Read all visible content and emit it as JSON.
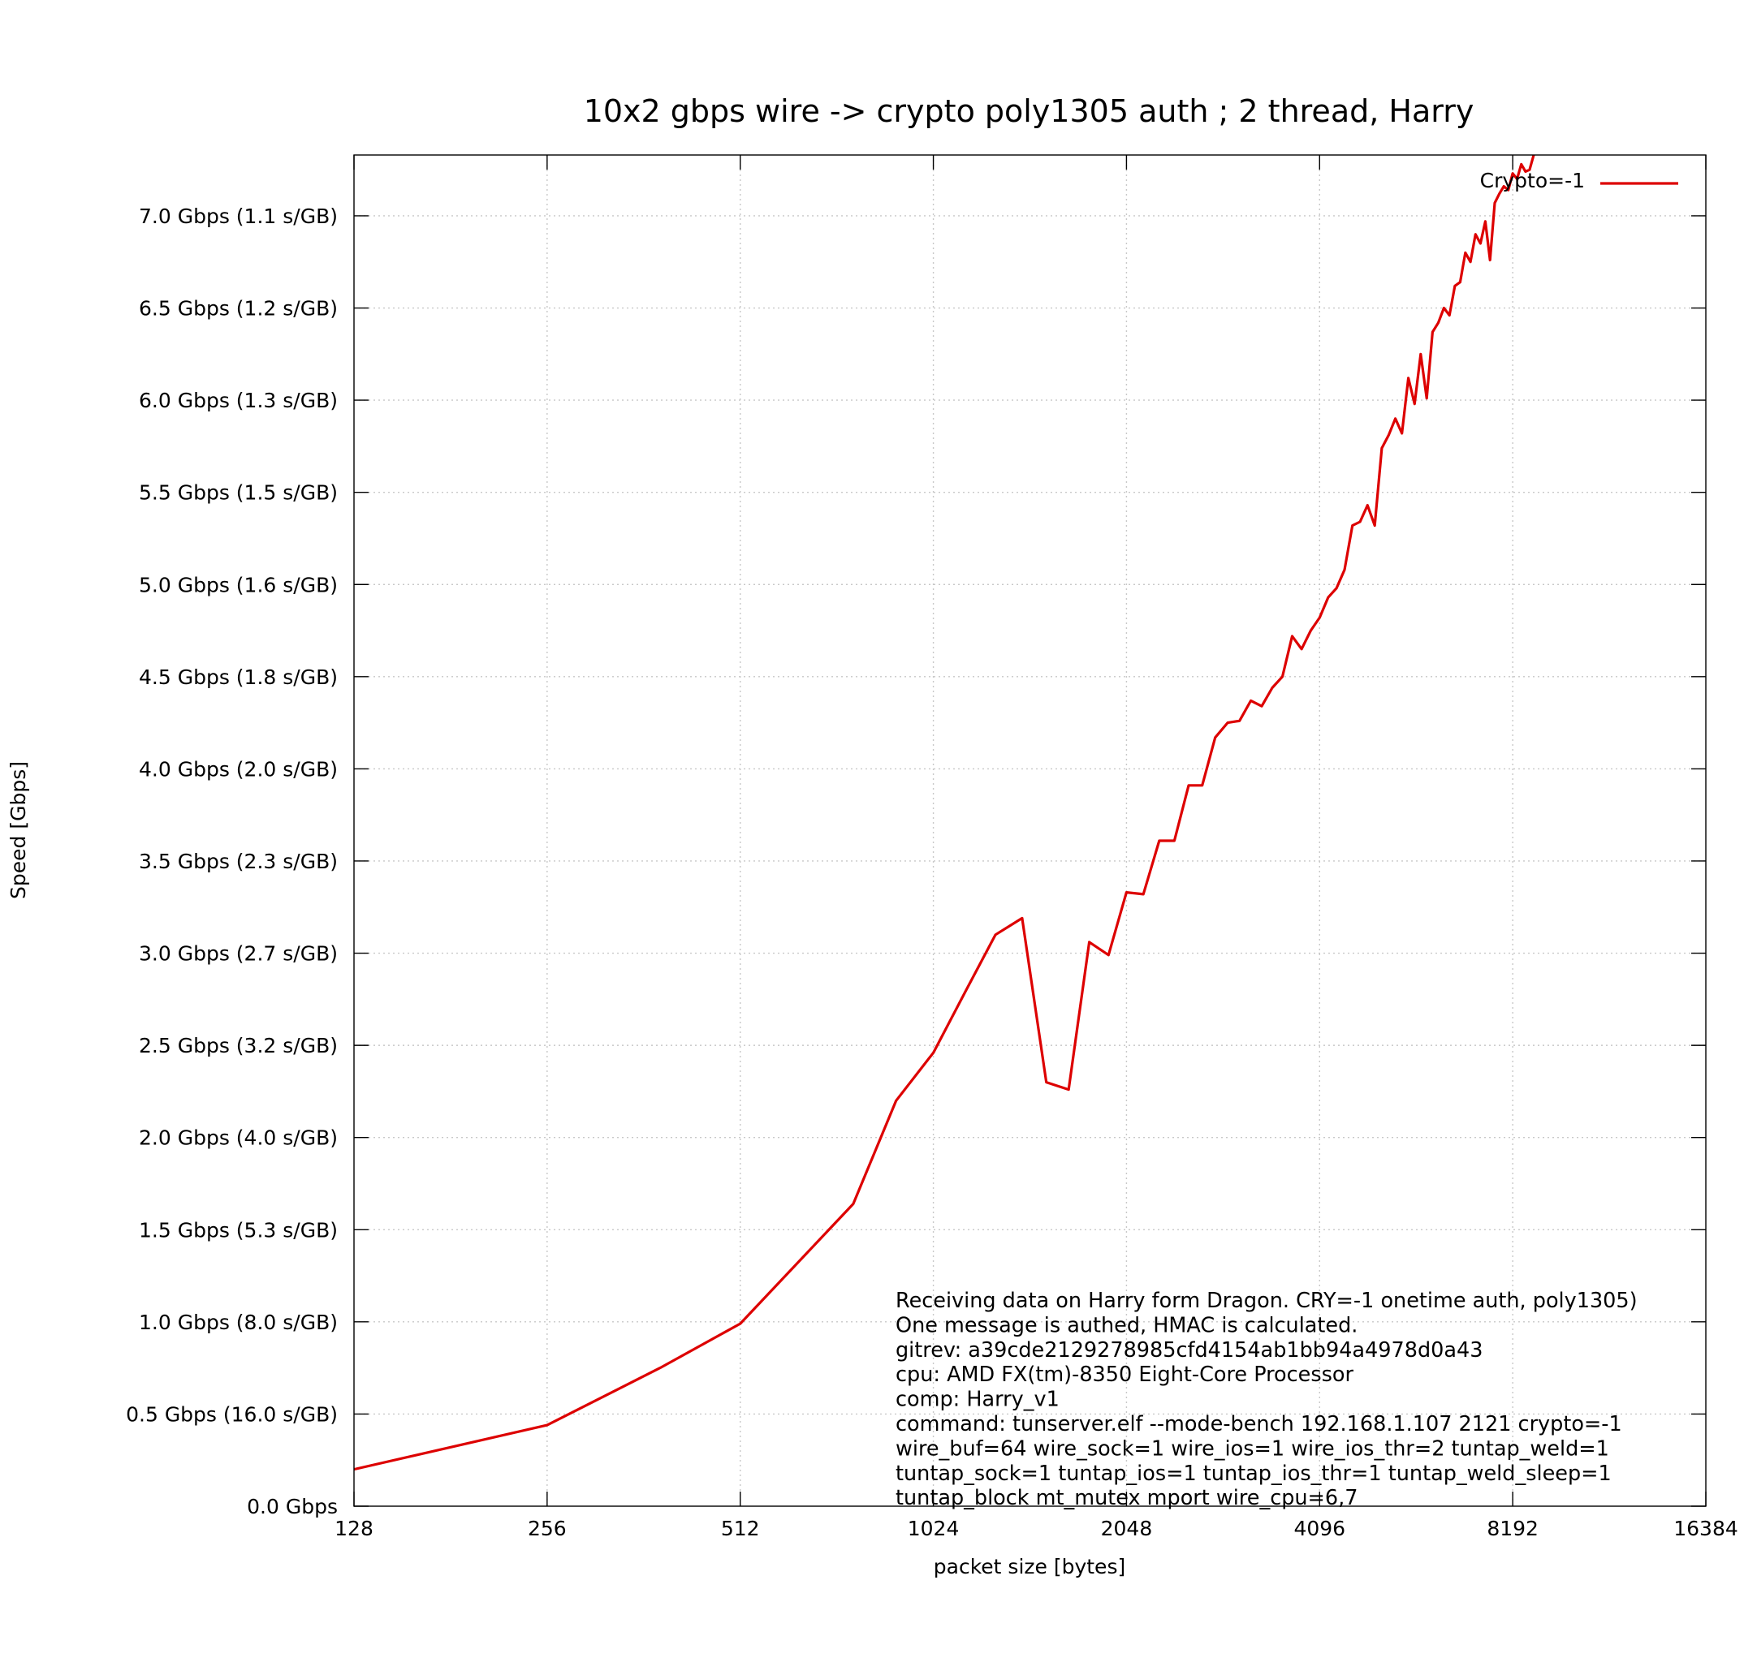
{
  "chart_data": {
    "type": "line",
    "title": "10x2 gbps wire -> crypto poly1305 auth ; 2 thread, Harry",
    "xlabel": "packet size [bytes]",
    "ylabel": "Speed [Gbps]",
    "x_scale": "log2",
    "xlim": [
      128,
      16384
    ],
    "ylim": [
      0,
      7.33
    ],
    "grid": true,
    "legend_position": "top-right",
    "x_ticks": [
      {
        "value": 128,
        "label": "128"
      },
      {
        "value": 256,
        "label": "256"
      },
      {
        "value": 512,
        "label": "512"
      },
      {
        "value": 1024,
        "label": "1024"
      },
      {
        "value": 2048,
        "label": "2048"
      },
      {
        "value": 4096,
        "label": "4096"
      },
      {
        "value": 8192,
        "label": "8192"
      },
      {
        "value": 16384,
        "label": "16384"
      }
    ],
    "y_ticks": [
      {
        "value": 0.0,
        "label": "0.0 Gbps"
      },
      {
        "value": 0.5,
        "label": "0.5 Gbps (16.0 s/GB)"
      },
      {
        "value": 1.0,
        "label": "1.0 Gbps (8.0 s/GB)"
      },
      {
        "value": 1.5,
        "label": "1.5 Gbps (5.3 s/GB)"
      },
      {
        "value": 2.0,
        "label": "2.0 Gbps (4.0 s/GB)"
      },
      {
        "value": 2.5,
        "label": "2.5 Gbps (3.2 s/GB)"
      },
      {
        "value": 3.0,
        "label": "3.0 Gbps (2.7 s/GB)"
      },
      {
        "value": 3.5,
        "label": "3.5 Gbps (2.3 s/GB)"
      },
      {
        "value": 4.0,
        "label": "4.0 Gbps (2.0 s/GB)"
      },
      {
        "value": 4.5,
        "label": "4.5 Gbps (1.8 s/GB)"
      },
      {
        "value": 5.0,
        "label": "5.0 Gbps (1.6 s/GB)"
      },
      {
        "value": 5.5,
        "label": "5.5 Gbps (1.5 s/GB)"
      },
      {
        "value": 6.0,
        "label": "6.0 Gbps (1.3 s/GB)"
      },
      {
        "value": 6.5,
        "label": "6.5 Gbps (1.2 s/GB)"
      },
      {
        "value": 7.0,
        "label": "7.0 Gbps (1.1 s/GB)"
      }
    ],
    "series": [
      {
        "name": "Crypto=-1",
        "color": "#dd0000",
        "points": [
          [
            128,
            0.2
          ],
          [
            256,
            0.44
          ],
          [
            384,
            0.75
          ],
          [
            512,
            0.99
          ],
          [
            768,
            1.64
          ],
          [
            896,
            2.2
          ],
          [
            1024,
            2.46
          ],
          [
            1152,
            2.8
          ],
          [
            1280,
            3.1
          ],
          [
            1408,
            3.19
          ],
          [
            1536,
            2.3
          ],
          [
            1664,
            2.26
          ],
          [
            1792,
            3.06
          ],
          [
            1920,
            2.99
          ],
          [
            2048,
            3.33
          ],
          [
            2176,
            3.32
          ],
          [
            2304,
            3.61
          ],
          [
            2432,
            3.61
          ],
          [
            2560,
            3.91
          ],
          [
            2688,
            3.91
          ],
          [
            2816,
            4.17
          ],
          [
            2944,
            4.25
          ],
          [
            3072,
            4.26
          ],
          [
            3200,
            4.37
          ],
          [
            3328,
            4.34
          ],
          [
            3456,
            4.44
          ],
          [
            3584,
            4.5
          ],
          [
            3712,
            4.72
          ],
          [
            3840,
            4.65
          ],
          [
            3968,
            4.75
          ],
          [
            4096,
            4.82
          ],
          [
            4224,
            4.93
          ],
          [
            4352,
            4.98
          ],
          [
            4480,
            5.08
          ],
          [
            4608,
            5.32
          ],
          [
            4736,
            5.34
          ],
          [
            4864,
            5.43
          ],
          [
            4992,
            5.32
          ],
          [
            5120,
            5.74
          ],
          [
            5248,
            5.81
          ],
          [
            5376,
            5.9
          ],
          [
            5504,
            5.82
          ],
          [
            5632,
            6.12
          ],
          [
            5760,
            5.98
          ],
          [
            5888,
            6.25
          ],
          [
            6016,
            6.01
          ],
          [
            6144,
            6.37
          ],
          [
            6272,
            6.42
          ],
          [
            6400,
            6.5
          ],
          [
            6528,
            6.46
          ],
          [
            6656,
            6.62
          ],
          [
            6784,
            6.64
          ],
          [
            6912,
            6.8
          ],
          [
            7040,
            6.75
          ],
          [
            7168,
            6.9
          ],
          [
            7296,
            6.85
          ],
          [
            7424,
            6.97
          ],
          [
            7552,
            6.76
          ],
          [
            7680,
            7.07
          ],
          [
            7808,
            7.12
          ],
          [
            7936,
            7.16
          ],
          [
            8064,
            7.14
          ],
          [
            8192,
            7.23
          ],
          [
            8320,
            7.2
          ],
          [
            8448,
            7.28
          ],
          [
            8576,
            7.24
          ],
          [
            8704,
            7.25
          ],
          [
            8832,
            7.33
          ]
        ]
      }
    ],
    "annotation": [
      "Receiving data on Harry form Dragon. CRY=-1 onetime auth, poly1305)",
      "One message is authed, HMAC is calculated.",
      "gitrev: a39cde2129278985cfd4154ab1bb94a4978d0a43",
      "cpu: AMD FX(tm)-8350 Eight-Core Processor",
      "comp: Harry_v1",
      "command: tunserver.elf --mode-bench 192.168.1.107 2121 crypto=-1",
      "wire_buf=64 wire_sock=1 wire_ios=1 wire_ios_thr=2 tuntap_weld=1",
      "tuntap_sock=1 tuntap_ios=1 tuntap_ios_thr=1 tuntap_weld_sleep=1",
      "tuntap_block mt_mutex mport wire_cpu=6,7"
    ]
  }
}
